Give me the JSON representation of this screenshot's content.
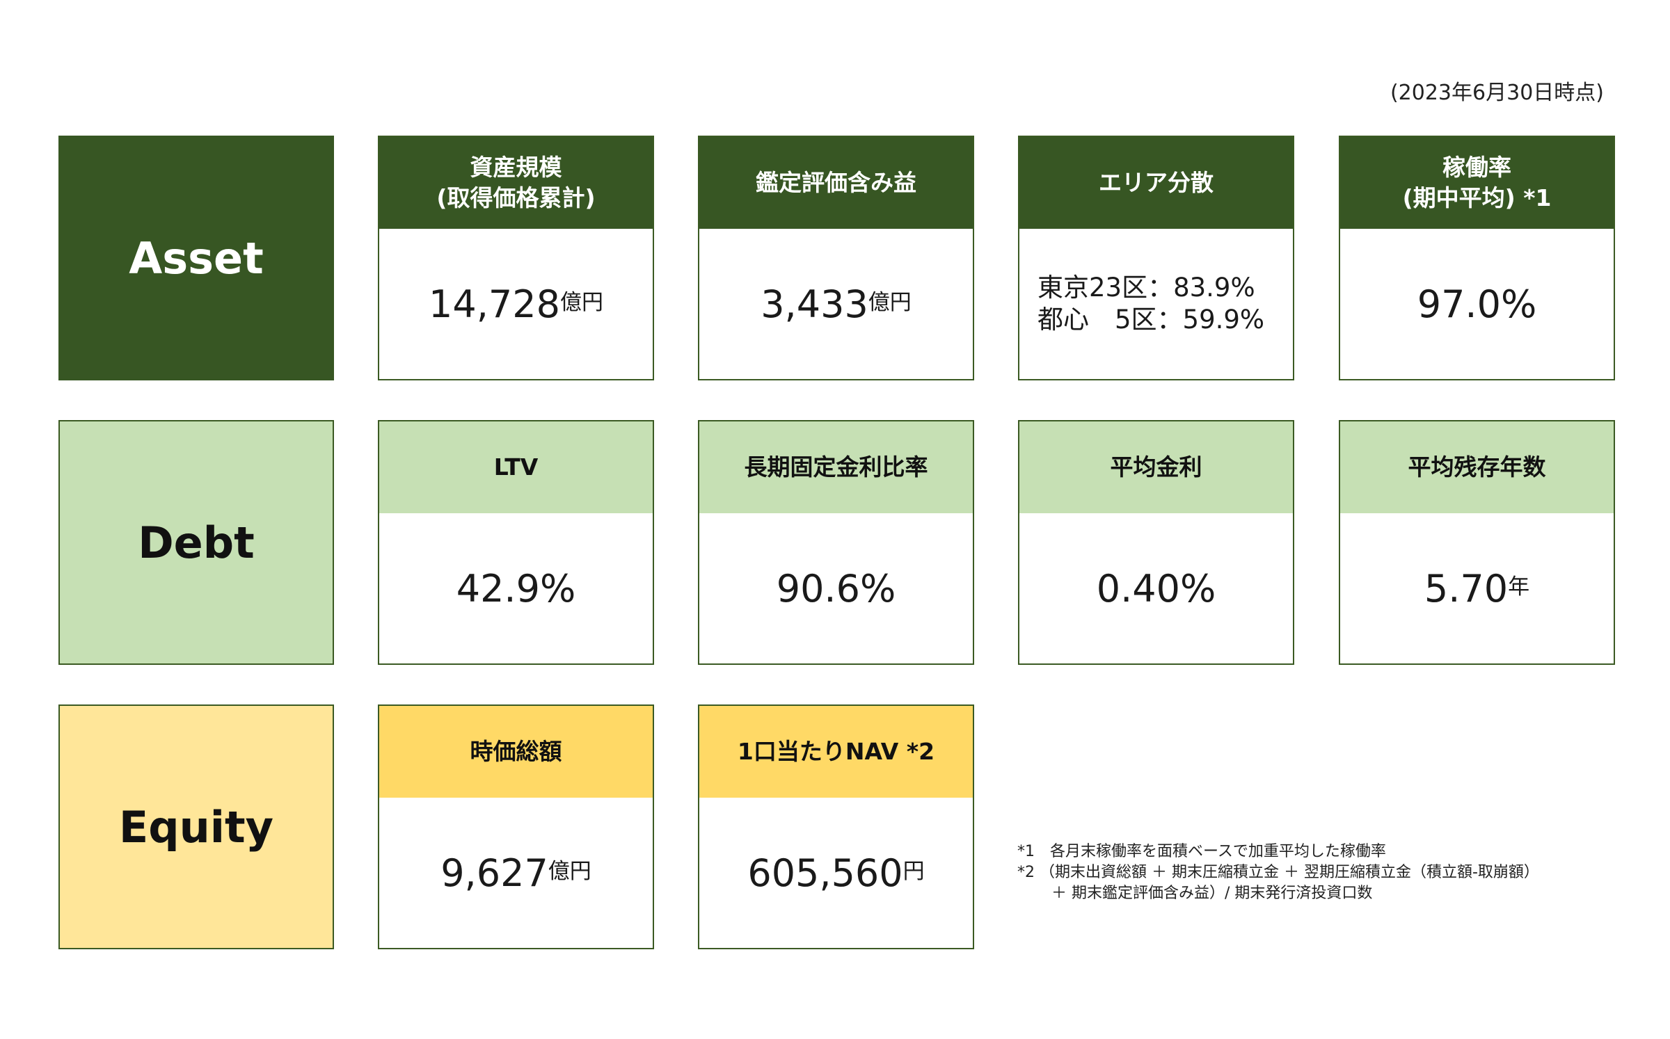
{
  "as_of": "(2023年6月30日時点)",
  "rows": {
    "asset": {
      "label": "Asset",
      "color": "#375623",
      "cards": {
        "size": {
          "title1": "資産規模",
          "title2": "(取得価格累計)",
          "value": "14,728",
          "unit": "億円"
        },
        "appraisal": {
          "title1": "鑑定評価含み益",
          "value": "3,433",
          "unit": "億円"
        },
        "area": {
          "title1": "エリア分散",
          "line1": "東京23区：83.9%",
          "line2": "都心　5区：59.9%"
        },
        "occupancy": {
          "title1": "稼働率",
          "title2": "(期中平均) *1",
          "value": "97.0%"
        }
      }
    },
    "debt": {
      "label": "Debt",
      "color": "#c6e0b4",
      "cards": {
        "ltv": {
          "title1": "LTV",
          "value": "42.9%"
        },
        "fixed": {
          "title1": "長期固定金利比率",
          "value": "90.6%"
        },
        "rate": {
          "title1": "平均金利",
          "value": "0.40%"
        },
        "remaining": {
          "title1": "平均残存年数",
          "value": "5.70",
          "unit": "年"
        }
      }
    },
    "equity": {
      "label": "Equity",
      "color": "#ffd966",
      "cards": {
        "mcap": {
          "title1": "時価総額",
          "value": "9,627",
          "unit": "億円"
        },
        "nav": {
          "title1": "1口当たりNAV *2",
          "value": "605,560",
          "unit": "円"
        }
      }
    }
  },
  "notes": {
    "note1": "*1　各月末稼働率を面積ベースで加重平均した稼働率",
    "note2": "*2 （期末出資総額 ＋ 期末圧縮積立金 ＋ 翌期圧縮積立金（積立額-取崩額）",
    "note3": "       ＋ 期末鑑定評価含み益）/ 期末発行済投資口数"
  }
}
